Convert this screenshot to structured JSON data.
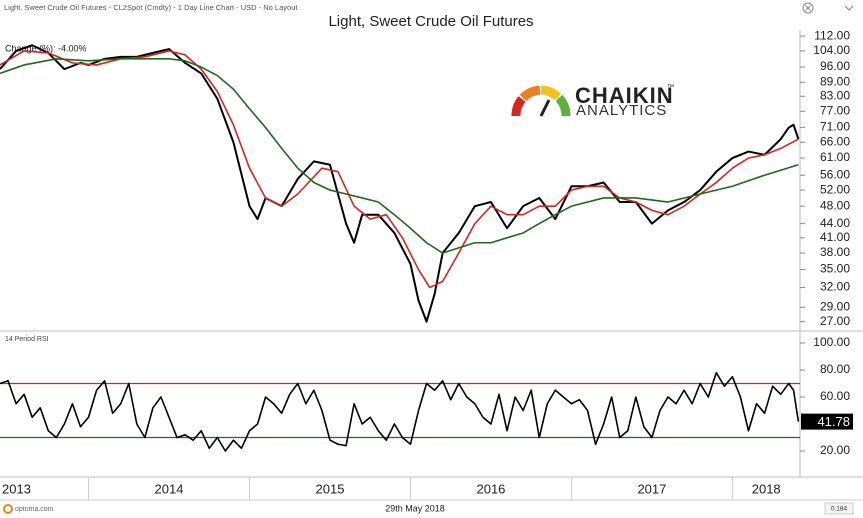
{
  "header": {
    "text": "Light, Sweet Crude Oil Futures - CL2Spot (Cmdty) - 1 Day Line Chart - USD - No Layout"
  },
  "logo": {
    "name": "CHAIKIN",
    "trademark": "™",
    "tagline": "ANALYTICS"
  },
  "footer": {
    "brand": "optuma.com",
    "date": "29th May 2018",
    "zoom": "0.184"
  },
  "chart_data": [
    {
      "type": "line",
      "title": "Light, Sweet Crude Oil Futures",
      "annotation": "Change (%): -4.00%",
      "log_scale": true,
      "xlim": [
        2013.45,
        2018.42
      ],
      "ylim": [
        25.9,
        114.3
      ],
      "yticks": [
        {
          "value": 112,
          "label": "112.00"
        },
        {
          "value": 104,
          "label": "104.00"
        },
        {
          "value": 96,
          "label": "96.00"
        },
        {
          "value": 89,
          "label": "89.00"
        },
        {
          "value": 83,
          "label": "83.00"
        },
        {
          "value": 77,
          "label": "77.00"
        },
        {
          "value": 71,
          "label": "71.00"
        },
        {
          "value": 66,
          "label": "66.00"
        },
        {
          "value": 61,
          "label": "61.00"
        },
        {
          "value": 56,
          "label": "56.00"
        },
        {
          "value": 52,
          "label": "52.00"
        },
        {
          "value": 48,
          "label": "48.00"
        },
        {
          "value": 44,
          "label": "44.00"
        },
        {
          "value": 41,
          "label": "41.00"
        },
        {
          "value": 38,
          "label": "38.00"
        },
        {
          "value": 35,
          "label": "35.00"
        },
        {
          "value": 32,
          "label": "32.00"
        },
        {
          "value": 29,
          "label": "29.00"
        },
        {
          "value": 27,
          "label": "27.00"
        }
      ],
      "series": [
        {
          "color": "#000000",
          "width": 2,
          "x": [
            2013.45,
            2013.55,
            2013.65,
            2013.75,
            2013.85,
            2013.95,
            2014.0,
            2014.1,
            2014.2,
            2014.3,
            2014.4,
            2014.5,
            2014.6,
            2014.7,
            2014.8,
            2014.9,
            2015.0,
            2015.05,
            2015.1,
            2015.2,
            2015.3,
            2015.4,
            2015.5,
            2015.6,
            2015.65,
            2015.7,
            2015.8,
            2015.9,
            2016.0,
            2016.05,
            2016.1,
            2016.15,
            2016.2,
            2016.3,
            2016.4,
            2016.5,
            2016.6,
            2016.7,
            2016.8,
            2016.9,
            2017.0,
            2017.1,
            2017.2,
            2017.3,
            2017.4,
            2017.5,
            2017.6,
            2017.7,
            2017.8,
            2017.9,
            2018.0,
            2018.1,
            2018.2,
            2018.3,
            2018.35,
            2018.38,
            2018.41
          ],
          "values": [
            95,
            104,
            107,
            103,
            95,
            98,
            97,
            100,
            101,
            101,
            103,
            105,
            98,
            93,
            82,
            66,
            48,
            45,
            50,
            48,
            55,
            60,
            59,
            44,
            40,
            46,
            46,
            42,
            36,
            30,
            27,
            31,
            38,
            42,
            48,
            49,
            43,
            48,
            50,
            45,
            53,
            53,
            54,
            49,
            49,
            44,
            47,
            49,
            52,
            57,
            61,
            63,
            62,
            67,
            71,
            72,
            67
          ]
        },
        {
          "color": "#d9241c",
          "width": 1.6,
          "x": [
            2013.45,
            2013.6,
            2013.75,
            2013.9,
            2014.05,
            2014.2,
            2014.35,
            2014.5,
            2014.6,
            2014.7,
            2014.8,
            2014.9,
            2015.0,
            2015.1,
            2015.2,
            2015.3,
            2015.45,
            2015.55,
            2015.65,
            2015.75,
            2015.85,
            2015.95,
            2016.05,
            2016.12,
            2016.2,
            2016.3,
            2016.4,
            2016.5,
            2016.6,
            2016.7,
            2016.8,
            2016.9,
            2017.0,
            2017.1,
            2017.2,
            2017.3,
            2017.4,
            2017.5,
            2017.6,
            2017.7,
            2017.8,
            2017.9,
            2018.0,
            2018.1,
            2018.2,
            2018.3,
            2018.41
          ],
          "values": [
            97,
            104,
            103,
            98,
            97,
            100,
            101,
            104,
            102,
            95,
            85,
            72,
            58,
            50,
            48,
            51,
            58,
            57,
            48,
            45,
            46,
            41,
            35,
            32,
            33,
            38,
            44,
            48,
            46,
            46,
            48,
            48,
            52,
            53,
            53,
            50,
            49,
            47,
            46,
            48,
            51,
            54,
            58,
            61,
            62,
            64,
            67
          ]
        },
        {
          "color": "#1d6b1d",
          "width": 1.6,
          "x": [
            2013.45,
            2013.6,
            2013.8,
            2014.0,
            2014.2,
            2014.4,
            2014.5,
            2014.6,
            2014.7,
            2014.8,
            2014.9,
            2015.0,
            2015.1,
            2015.2,
            2015.3,
            2015.4,
            2015.5,
            2015.6,
            2015.7,
            2015.8,
            2015.9,
            2016.0,
            2016.1,
            2016.2,
            2016.3,
            2016.4,
            2016.5,
            2016.6,
            2016.7,
            2016.8,
            2016.9,
            2017.0,
            2017.2,
            2017.4,
            2017.6,
            2017.8,
            2018.0,
            2018.2,
            2018.41
          ],
          "values": [
            93,
            97,
            100,
            99,
            100,
            100,
            100,
            99,
            96,
            92,
            86,
            78,
            71,
            64,
            58,
            54,
            52,
            51,
            50,
            49,
            46,
            43,
            40,
            38,
            39,
            40,
            40,
            41,
            42,
            44,
            46,
            48,
            50,
            50,
            49,
            51,
            53,
            56,
            59
          ]
        }
      ]
    },
    {
      "type": "line",
      "title": "14 Period RSI",
      "log_scale": false,
      "xlim": [
        2013.45,
        2018.42
      ],
      "xticks": [
        2013,
        2014,
        2015,
        2016,
        2017,
        2018
      ],
      "ylim": [
        1.5,
        107.4
      ],
      "yticks": [
        {
          "value": 100,
          "label": "100.00"
        },
        {
          "value": 80,
          "label": "80.00"
        },
        {
          "value": 60,
          "label": "60.00"
        },
        {
          "value": 20,
          "label": "20.00"
        }
      ],
      "levels": [
        {
          "value": 70,
          "color": "#d9241c"
        },
        {
          "value": 30,
          "color": "#1d6b1d"
        }
      ],
      "series": [
        {
          "color": "#000000",
          "width": 1.6,
          "x": [
            2013.45,
            2013.5,
            2013.55,
            2013.6,
            2013.65,
            2013.7,
            2013.75,
            2013.8,
            2013.85,
            2013.9,
            2013.95,
            2014.0,
            2014.05,
            2014.1,
            2014.15,
            2014.2,
            2014.25,
            2014.3,
            2014.35,
            2014.4,
            2014.45,
            2014.5,
            2014.55,
            2014.6,
            2014.65,
            2014.7,
            2014.75,
            2014.8,
            2014.85,
            2014.9,
            2014.95,
            2015.0,
            2015.05,
            2015.1,
            2015.15,
            2015.2,
            2015.25,
            2015.3,
            2015.35,
            2015.4,
            2015.45,
            2015.5,
            2015.55,
            2015.6,
            2015.65,
            2015.7,
            2015.75,
            2015.8,
            2015.85,
            2015.9,
            2015.95,
            2016.0,
            2016.05,
            2016.1,
            2016.15,
            2016.2,
            2016.25,
            2016.3,
            2016.35,
            2016.4,
            2016.45,
            2016.5,
            2016.55,
            2016.6,
            2016.65,
            2016.7,
            2016.75,
            2016.8,
            2016.85,
            2016.9,
            2016.95,
            2017.0,
            2017.05,
            2017.1,
            2017.15,
            2017.2,
            2017.25,
            2017.3,
            2017.35,
            2017.4,
            2017.45,
            2017.5,
            2017.55,
            2017.6,
            2017.65,
            2017.7,
            2017.75,
            2017.8,
            2017.85,
            2017.9,
            2017.95,
            2018.0,
            2018.05,
            2018.1,
            2018.15,
            2018.2,
            2018.25,
            2018.3,
            2018.35,
            2018.38,
            2018.41
          ],
          "values": [
            70,
            72,
            55,
            62,
            45,
            52,
            35,
            30,
            40,
            55,
            38,
            45,
            65,
            72,
            48,
            55,
            70,
            40,
            30,
            52,
            60,
            45,
            30,
            32,
            28,
            35,
            22,
            30,
            20,
            28,
            22,
            35,
            40,
            60,
            55,
            48,
            62,
            70,
            55,
            65,
            50,
            28,
            25,
            24,
            55,
            40,
            45,
            35,
            28,
            40,
            30,
            25,
            50,
            70,
            65,
            72,
            58,
            70,
            60,
            55,
            45,
            40,
            62,
            35,
            60,
            50,
            65,
            30,
            55,
            65,
            60,
            55,
            58,
            50,
            25,
            40,
            60,
            30,
            35,
            60,
            38,
            30,
            50,
            60,
            55,
            65,
            55,
            70,
            60,
            78,
            68,
            75,
            60,
            35,
            55,
            48,
            68,
            62,
            70,
            65,
            41.78
          ]
        }
      ]
    }
  ]
}
